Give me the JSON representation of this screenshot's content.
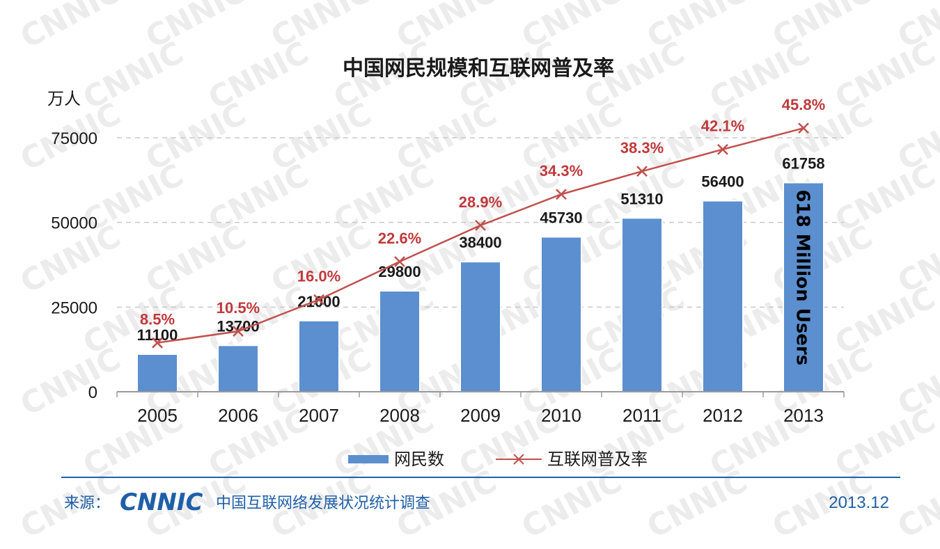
{
  "watermark": "CNNIC",
  "chart_data": {
    "type": "bar",
    "title": "中国网民规模和互联网普及率",
    "y_unit": "万人",
    "categories": [
      "2005",
      "2006",
      "2007",
      "2008",
      "2009",
      "2010",
      "2011",
      "2012",
      "2013"
    ],
    "ylim": [
      0,
      75000
    ],
    "yticks": [
      0,
      25000,
      50000,
      75000
    ],
    "grid": true,
    "series": [
      {
        "name": "网民数",
        "type": "bar",
        "color": "#5b8fcf",
        "values": [
          11100,
          13700,
          21000,
          29800,
          38400,
          45730,
          51310,
          56400,
          61758
        ],
        "labels": [
          "11100",
          "13700",
          "21000",
          "29800",
          "38400",
          "45730",
          "51310",
          "56400",
          "61758"
        ]
      },
      {
        "name": "互联网普及率",
        "type": "line",
        "color": "#c0504d",
        "values": [
          8.5,
          10.5,
          16.0,
          22.6,
          28.9,
          34.3,
          38.3,
          42.1,
          45.8
        ],
        "labels": [
          "8.5%",
          "10.5%",
          "16.0%",
          "22.6%",
          "28.9%",
          "34.3%",
          "38.3%",
          "42.1%",
          "45.8%"
        ]
      }
    ],
    "legend_position": "bottom-center",
    "annotation": "618 Million Users"
  },
  "footer": {
    "source_label": "来源：",
    "logo_text": "CNNIC",
    "source_text": "中国互联网络发展状况统计调查",
    "date": "2013.12"
  }
}
